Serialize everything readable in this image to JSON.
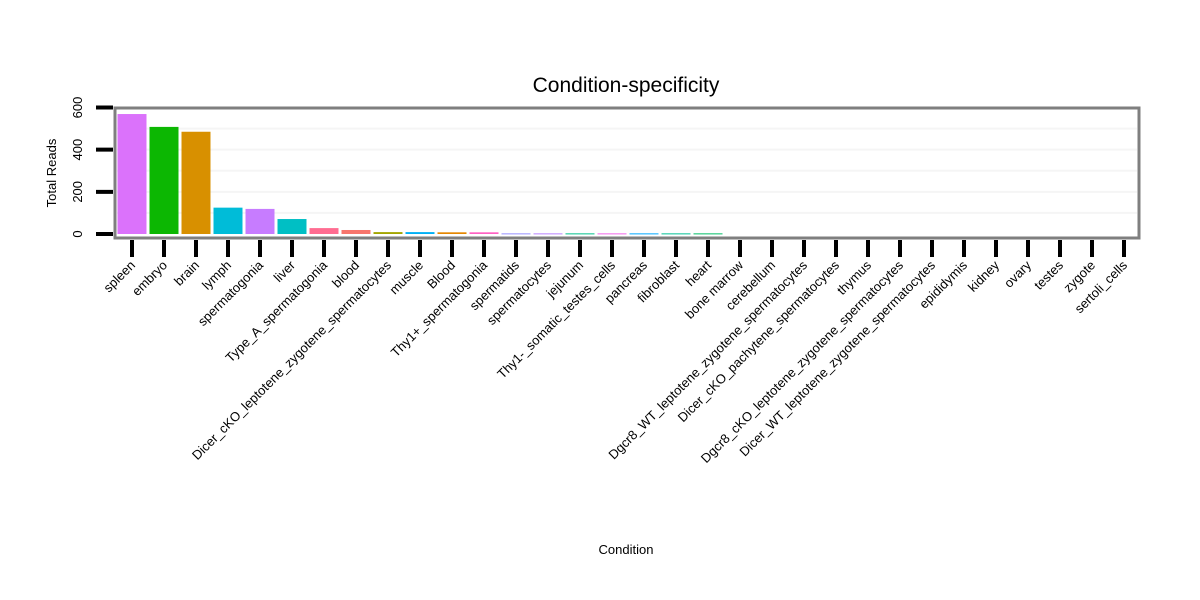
{
  "chart_data": {
    "type": "bar",
    "title": "Condition-specificity",
    "xlabel": "Condition",
    "ylabel": "Total Reads",
    "ylim": [
      0,
      620
    ],
    "yticks": [
      0,
      200,
      400,
      600
    ],
    "ytick_labels": [
      "0",
      "200",
      "400",
      "600"
    ],
    "grid": true,
    "legend": "none",
    "categories": [
      "spleen",
      "embryo",
      "brain",
      "lymph",
      "spermatogonia",
      "liver",
      "Type_A_spermatogonia",
      "blood",
      "Dicer_cKO_leptotene_zygotene_spermatocytes",
      "muscle",
      "Blood",
      "Thy1+_spermatogonia",
      "spermatids",
      "spermatocytes",
      "jejunum",
      "Thy1-_somatic_testes_cells",
      "pancreas",
      "fibroblast",
      "heart",
      "bone marrow",
      "cerebellum",
      "Dgcr8_WT_leptotene_zygotene_spermatocytes",
      "Dicer_cKO_pachytene_spermatocytes",
      "thymus",
      "Dgcr8_cKO_leptotene_zygotene_spermatocytes",
      "Dicer_WT_leptotene_zygotene_spermatocytes",
      "epididymis",
      "kidney",
      "ovary",
      "testes",
      "zygote",
      "sertoli_cells"
    ],
    "values": [
      569,
      508,
      485,
      125,
      119,
      71,
      28,
      19,
      9,
      9,
      8,
      8,
      3,
      3,
      3,
      3,
      3,
      3,
      3,
      0,
      0,
      0,
      0,
      0,
      0,
      0,
      0,
      0,
      0,
      0,
      0,
      0
    ],
    "colors": [
      "#DB72FB",
      "#0CB702",
      "#D89000",
      "#00BCD8",
      "#C77CFF",
      "#00BFC4",
      "#FF6C91",
      "#F8766D",
      "#A3A500",
      "#00B0F6",
      "#E58700",
      "#FF61C3",
      "#9590FF",
      "#B983FF",
      "#00C08B",
      "#F066EA",
      "#00A9FF",
      "#00C094",
      "#00BE67",
      "#7CAE00",
      "#39B600",
      "#00BF7D",
      "#00B4EF",
      "#E76BF3",
      "#FD61D1",
      "#8AAB00",
      "#BB9D00",
      "#619CFF",
      "#FF67A4",
      "#00C1A3",
      "#E7861B",
      "#53B400"
    ]
  }
}
